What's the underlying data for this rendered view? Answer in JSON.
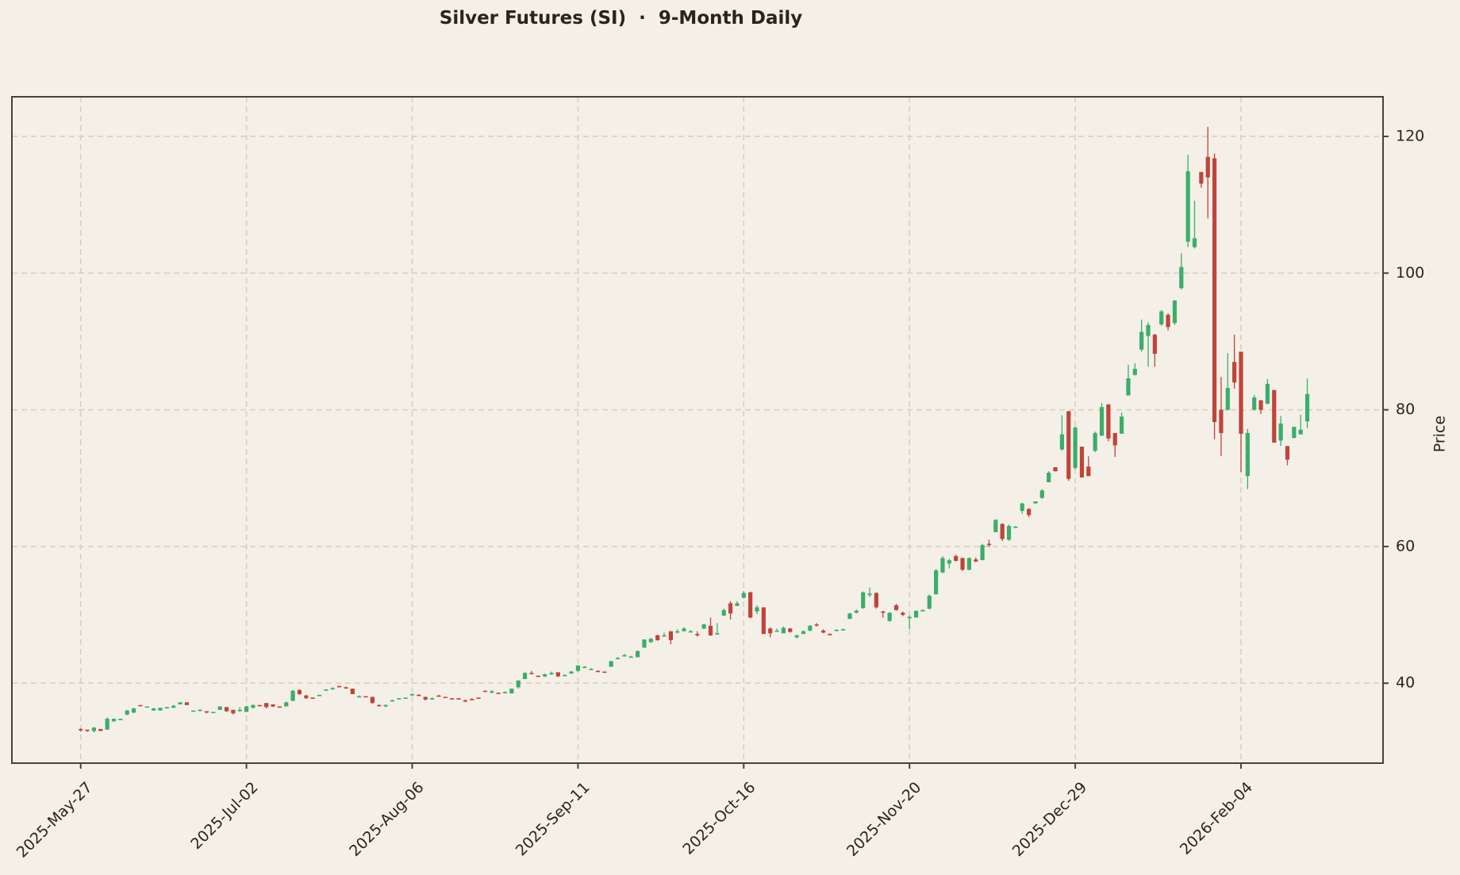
{
  "chart_data": {
    "type": "candlestick",
    "title": "Silver Futures (SI)  ·  9-Month Daily",
    "xlabel": "",
    "ylabel": "Price",
    "ylim": [
      28.3,
      125.8
    ],
    "yticks": [
      40,
      60,
      80,
      100,
      120
    ],
    "xtick_labels": [
      "2025-May-27",
      "2025-Jul-02",
      "2025-Aug-06",
      "2025-Sep-11",
      "2025-Oct-16",
      "2025-Nov-20",
      "2025-Dec-29",
      "2026-Feb-04"
    ],
    "xtick_indices": [
      0,
      25,
      50,
      75,
      100,
      125,
      150,
      175
    ],
    "grid": true,
    "y_axis_side": "right",
    "colors": {
      "up": "#3aae6a",
      "down": "#c0443a",
      "background": "#f4f0e8",
      "grid": "#d9cfba",
      "axis": "#4a4236"
    },
    "candles": [
      [
        33.3,
        33.4,
        32.9,
        33.1
      ],
      [
        33.2,
        33.2,
        32.9,
        33.0
      ],
      [
        33.0,
        33.6,
        32.8,
        33.5
      ],
      [
        33.3,
        33.3,
        33.0,
        33.0
      ],
      [
        33.2,
        35.0,
        33.2,
        34.8
      ],
      [
        34.4,
        34.8,
        34.4,
        34.8
      ],
      [
        34.6,
        34.8,
        34.6,
        34.8
      ],
      [
        35.4,
        36.1,
        35.3,
        36.0
      ],
      [
        35.7,
        36.4,
        35.6,
        36.3
      ],
      [
        36.8,
        36.8,
        36.7,
        36.7
      ],
      [
        36.5,
        36.6,
        36.5,
        36.6
      ],
      [
        36.0,
        36.4,
        36.0,
        36.3
      ],
      [
        36.0,
        36.4,
        36.0,
        36.4
      ],
      [
        36.3,
        36.5,
        36.3,
        36.5
      ],
      [
        36.4,
        36.8,
        36.4,
        36.7
      ],
      [
        36.9,
        37.2,
        36.9,
        37.2
      ],
      [
        37.2,
        37.2,
        36.8,
        36.8
      ],
      [
        35.9,
        36.0,
        35.9,
        36.0
      ],
      [
        36.1,
        36.2,
        36.1,
        36.1
      ],
      [
        35.9,
        35.9,
        35.6,
        35.7
      ],
      [
        35.8,
        35.8,
        35.8,
        35.8
      ],
      [
        36.1,
        36.6,
        36.1,
        36.6
      ],
      [
        36.5,
        36.5,
        35.8,
        35.9
      ],
      [
        36.1,
        36.1,
        35.4,
        35.6
      ],
      [
        36.0,
        36.5,
        35.8,
        36.1
      ],
      [
        35.8,
        36.7,
        35.8,
        36.6
      ],
      [
        36.4,
        36.9,
        36.3,
        36.8
      ],
      [
        36.8,
        36.8,
        36.7,
        36.7
      ],
      [
        37.1,
        37.1,
        36.3,
        36.5
      ],
      [
        36.9,
        36.9,
        36.5,
        36.6
      ],
      [
        36.6,
        36.6,
        36.4,
        36.5
      ],
      [
        36.6,
        37.3,
        36.6,
        37.2
      ],
      [
        37.4,
        39.0,
        37.4,
        38.9
      ],
      [
        39.0,
        39.1,
        38.3,
        38.4
      ],
      [
        38.2,
        38.3,
        37.7,
        37.8
      ],
      [
        37.9,
        37.9,
        37.7,
        37.8
      ],
      [
        38.1,
        38.3,
        38.1,
        38.3
      ],
      [
        38.9,
        39.1,
        38.9,
        39.1
      ],
      [
        39.2,
        39.4,
        39.0,
        39.3
      ],
      [
        39.6,
        39.6,
        39.4,
        39.4
      ],
      [
        39.4,
        39.5,
        39.2,
        39.3
      ],
      [
        39.2,
        39.2,
        38.4,
        38.4
      ],
      [
        38.1,
        38.2,
        38.0,
        38.1
      ],
      [
        38.1,
        38.1,
        38.0,
        38.0
      ],
      [
        38.0,
        38.0,
        37.0,
        37.1
      ],
      [
        36.8,
        36.9,
        36.6,
        36.7
      ],
      [
        36.6,
        36.9,
        36.5,
        36.8
      ],
      [
        37.4,
        37.6,
        37.4,
        37.5
      ],
      [
        37.7,
        37.8,
        37.7,
        37.8
      ],
      [
        37.9,
        37.9,
        37.9,
        37.9
      ],
      [
        38.2,
        38.5,
        38.2,
        38.4
      ],
      [
        38.3,
        38.4,
        38.2,
        38.2
      ],
      [
        38.0,
        38.0,
        37.5,
        37.6
      ],
      [
        37.6,
        37.9,
        37.6,
        37.8
      ],
      [
        38.2,
        38.3,
        38.1,
        38.1
      ],
      [
        38.0,
        38.0,
        37.9,
        37.9
      ],
      [
        37.8,
        37.8,
        37.6,
        37.7
      ],
      [
        37.8,
        37.8,
        37.6,
        37.7
      ],
      [
        37.5,
        37.6,
        37.2,
        37.4
      ],
      [
        37.7,
        37.8,
        37.6,
        37.6
      ],
      [
        37.9,
        37.9,
        37.8,
        37.8
      ],
      [
        38.9,
        38.9,
        38.8,
        38.8
      ],
      [
        38.8,
        39.0,
        38.5,
        38.8
      ],
      [
        38.6,
        38.6,
        38.5,
        38.5
      ],
      [
        38.6,
        38.8,
        38.6,
        38.7
      ],
      [
        38.5,
        39.2,
        38.5,
        39.2
      ],
      [
        39.4,
        40.4,
        39.2,
        40.4
      ],
      [
        40.6,
        41.6,
        40.6,
        41.5
      ],
      [
        41.5,
        41.8,
        41.4,
        41.4
      ],
      [
        41.1,
        41.1,
        40.9,
        41.0
      ],
      [
        41.0,
        41.4,
        40.9,
        41.3
      ],
      [
        41.3,
        41.7,
        41.2,
        41.5
      ],
      [
        41.6,
        41.6,
        40.9,
        41.0
      ],
      [
        41.2,
        41.3,
        41.2,
        41.2
      ],
      [
        41.4,
        41.8,
        41.4,
        41.7
      ],
      [
        41.8,
        42.6,
        41.7,
        42.6
      ],
      [
        42.3,
        42.5,
        42.3,
        42.4
      ],
      [
        42.1,
        42.2,
        42.0,
        42.1
      ],
      [
        41.8,
        41.9,
        41.7,
        41.7
      ],
      [
        41.7,
        41.7,
        41.6,
        41.6
      ],
      [
        42.4,
        43.3,
        42.4,
        43.2
      ],
      [
        43.6,
        43.8,
        43.5,
        43.7
      ],
      [
        44.0,
        44.3,
        43.9,
        44.1
      ],
      [
        43.9,
        44.0,
        43.8,
        43.9
      ],
      [
        43.8,
        44.8,
        43.8,
        44.7
      ],
      [
        45.2,
        46.4,
        45.2,
        46.4
      ],
      [
        46.0,
        46.6,
        45.9,
        46.5
      ],
      [
        47.0,
        47.1,
        46.2,
        46.3
      ],
      [
        46.9,
        47.4,
        46.9,
        47.0
      ],
      [
        47.6,
        47.6,
        45.7,
        46.3
      ],
      [
        47.5,
        47.9,
        47.3,
        47.6
      ],
      [
        47.6,
        48.2,
        47.6,
        48.0
      ],
      [
        47.6,
        47.8,
        47.5,
        47.6
      ],
      [
        47.2,
        47.6,
        46.8,
        47.0
      ],
      [
        48.0,
        48.7,
        47.9,
        48.6
      ],
      [
        48.4,
        49.6,
        46.9,
        47.0
      ],
      [
        47.2,
        48.8,
        47.1,
        47.3
      ],
      [
        49.9,
        50.9,
        49.8,
        50.7
      ],
      [
        51.7,
        52.0,
        49.3,
        50.2
      ],
      [
        51.3,
        52.0,
        51.3,
        51.7
      ],
      [
        52.5,
        53.5,
        52.4,
        53.2
      ],
      [
        53.3,
        53.4,
        49.5,
        49.6
      ],
      [
        50.5,
        51.4,
        50.1,
        51.1
      ],
      [
        51.1,
        51.1,
        47.2,
        47.2
      ],
      [
        48.0,
        48.2,
        46.7,
        47.3
      ],
      [
        47.6,
        48.0,
        47.6,
        47.7
      ],
      [
        47.3,
        48.3,
        47.3,
        48.1
      ],
      [
        48.0,
        48.1,
        47.4,
        47.5
      ],
      [
        46.7,
        47.1,
        46.6,
        47.0
      ],
      [
        47.2,
        47.7,
        47.2,
        47.6
      ],
      [
        47.7,
        48.5,
        47.6,
        48.4
      ],
      [
        48.6,
        48.8,
        48.3,
        48.5
      ],
      [
        47.7,
        47.9,
        47.3,
        47.4
      ],
      [
        47.2,
        47.3,
        47.0,
        47.1
      ],
      [
        47.8,
        47.9,
        47.7,
        47.8
      ],
      [
        47.9,
        48.0,
        47.9,
        47.9
      ],
      [
        49.4,
        50.3,
        49.4,
        50.2
      ],
      [
        50.3,
        50.8,
        50.2,
        50.6
      ],
      [
        51.0,
        53.4,
        50.9,
        53.3
      ],
      [
        52.9,
        54.0,
        52.6,
        53.1
      ],
      [
        53.2,
        53.3,
        50.9,
        51.1
      ],
      [
        50.5,
        50.6,
        49.6,
        50.3
      ],
      [
        49.1,
        50.4,
        49.0,
        50.3
      ],
      [
        51.4,
        51.6,
        50.6,
        50.7
      ],
      [
        50.3,
        50.5,
        49.8,
        50.0
      ],
      [
        49.5,
        49.9,
        47.9,
        49.7
      ],
      [
        49.6,
        50.5,
        49.6,
        50.6
      ],
      [
        50.7,
        50.8,
        50.6,
        50.7
      ],
      [
        50.9,
        53.0,
        50.8,
        52.8
      ],
      [
        53.0,
        56.7,
        53.0,
        56.5
      ],
      [
        56.2,
        58.6,
        56.1,
        58.3
      ],
      [
        57.5,
        58.2,
        56.8,
        58.0
      ],
      [
        58.6,
        58.8,
        57.8,
        57.9
      ],
      [
        58.3,
        58.4,
        56.4,
        56.6
      ],
      [
        56.6,
        58.4,
        56.5,
        58.3
      ],
      [
        58.1,
        58.4,
        57.7,
        57.8
      ],
      [
        58.0,
        60.4,
        58.0,
        60.2
      ],
      [
        60.4,
        61.0,
        59.9,
        60.2
      ],
      [
        62.1,
        64.0,
        62.1,
        63.9
      ],
      [
        63.3,
        63.4,
        60.8,
        61.1
      ],
      [
        61.0,
        63.2,
        60.8,
        63.0
      ],
      [
        62.8,
        63.0,
        62.7,
        62.9
      ],
      [
        65.2,
        66.4,
        64.8,
        66.3
      ],
      [
        65.5,
        65.6,
        64.3,
        64.6
      ],
      [
        66.3,
        66.6,
        66.3,
        66.6
      ],
      [
        67.1,
        68.4,
        67.0,
        68.2
      ],
      [
        69.4,
        71.0,
        69.4,
        70.8
      ],
      [
        71.6,
        71.6,
        71.0,
        71.0
      ],
      [
        74.2,
        79.2,
        74.0,
        76.4
      ],
      [
        79.8,
        79.8,
        69.6,
        69.9
      ],
      [
        71.5,
        77.6,
        71.3,
        77.4
      ],
      [
        74.6,
        74.6,
        70.1,
        70.1
      ],
      [
        71.7,
        73.2,
        70.3,
        70.3
      ],
      [
        74.0,
        76.8,
        73.8,
        76.6
      ],
      [
        76.2,
        81.0,
        76.2,
        80.4
      ],
      [
        80.8,
        80.8,
        75.4,
        75.8
      ],
      [
        76.6,
        76.6,
        73.1,
        74.8
      ],
      [
        76.5,
        79.6,
        76.5,
        79.0
      ],
      [
        82.1,
        86.6,
        82.1,
        84.6
      ],
      [
        85.1,
        86.8,
        85.0,
        86.0
      ],
      [
        88.8,
        93.2,
        88.5,
        91.4
      ],
      [
        90.8,
        92.8,
        86.3,
        92.4
      ],
      [
        91.0,
        91.1,
        86.3,
        88.2
      ],
      [
        92.5,
        94.6,
        92.3,
        94.4
      ],
      [
        93.9,
        94.1,
        91.6,
        92.1
      ],
      [
        92.7,
        96.0,
        92.4,
        96.0
      ],
      [
        97.8,
        102.9,
        97.6,
        100.9
      ],
      [
        104.6,
        117.3,
        103.8,
        114.9
      ],
      [
        103.8,
        110.6,
        103.6,
        105.1
      ],
      [
        114.8,
        114.8,
        112.5,
        113.1
      ],
      [
        117.0,
        121.4,
        108.0,
        114.0
      ],
      [
        116.8,
        117.5,
        75.7,
        78.2
      ],
      [
        80.0,
        84.8,
        73.2,
        76.6
      ],
      [
        80.0,
        88.3,
        79.9,
        83.2
      ],
      [
        87.0,
        91.0,
        83.1,
        84.0
      ],
      [
        88.5,
        88.5,
        70.9,
        76.5
      ],
      [
        70.3,
        77.2,
        68.4,
        76.6
      ],
      [
        80.0,
        82.2,
        79.9,
        81.8
      ],
      [
        81.4,
        81.4,
        79.4,
        80.0
      ],
      [
        80.9,
        84.5,
        80.8,
        83.8
      ],
      [
        82.9,
        82.9,
        75.2,
        75.2
      ],
      [
        75.5,
        79.1,
        74.7,
        78.0
      ],
      [
        74.7,
        74.7,
        71.9,
        72.7
      ],
      [
        75.9,
        77.5,
        75.8,
        77.5
      ],
      [
        76.4,
        79.3,
        76.4,
        77.1
      ],
      [
        78.3,
        84.6,
        77.3,
        82.3
      ]
    ]
  }
}
